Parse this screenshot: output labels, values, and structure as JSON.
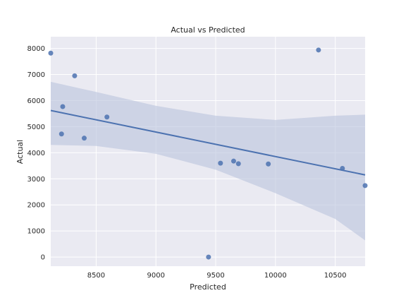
{
  "chart_data": {
    "type": "scatter",
    "title": "Actual vs Predicted",
    "xlabel": "Predicted",
    "ylabel": "Actual",
    "xlim": [
      8120,
      10750
    ],
    "ylim": [
      -350,
      8450
    ],
    "xticks": [
      8500,
      9000,
      9500,
      10000,
      10500
    ],
    "yticks": [
      0,
      1000,
      2000,
      3000,
      4000,
      5000,
      6000,
      7000,
      8000
    ],
    "grid": true,
    "points": [
      {
        "x": 8120,
        "y": 7820
      },
      {
        "x": 8320,
        "y": 6950
      },
      {
        "x": 8220,
        "y": 5770
      },
      {
        "x": 8590,
        "y": 5370
      },
      {
        "x": 8210,
        "y": 4720
      },
      {
        "x": 8400,
        "y": 4560
      },
      {
        "x": 9440,
        "y": 0
      },
      {
        "x": 9540,
        "y": 3600
      },
      {
        "x": 9650,
        "y": 3680
      },
      {
        "x": 9690,
        "y": 3580
      },
      {
        "x": 9940,
        "y": 3570
      },
      {
        "x": 10360,
        "y": 7940
      },
      {
        "x": 10560,
        "y": 3400
      },
      {
        "x": 10750,
        "y": 2740
      }
    ],
    "regression_line": {
      "x": [
        8120,
        10750
      ],
      "y": [
        5620,
        3150
      ]
    },
    "confidence_band": {
      "x": [
        8120,
        8500,
        9000,
        9500,
        10000,
        10500,
        10750
      ],
      "upper": [
        6720,
        6330,
        5800,
        5420,
        5260,
        5420,
        5460
      ],
      "lower": [
        4300,
        4260,
        3960,
        3350,
        2450,
        1460,
        640
      ]
    },
    "colors": {
      "background": "#eaeaf2",
      "grid": "#ffffff",
      "points": "#4c72b0",
      "line": "#4c72b0",
      "band": "#b9c3dc"
    }
  }
}
